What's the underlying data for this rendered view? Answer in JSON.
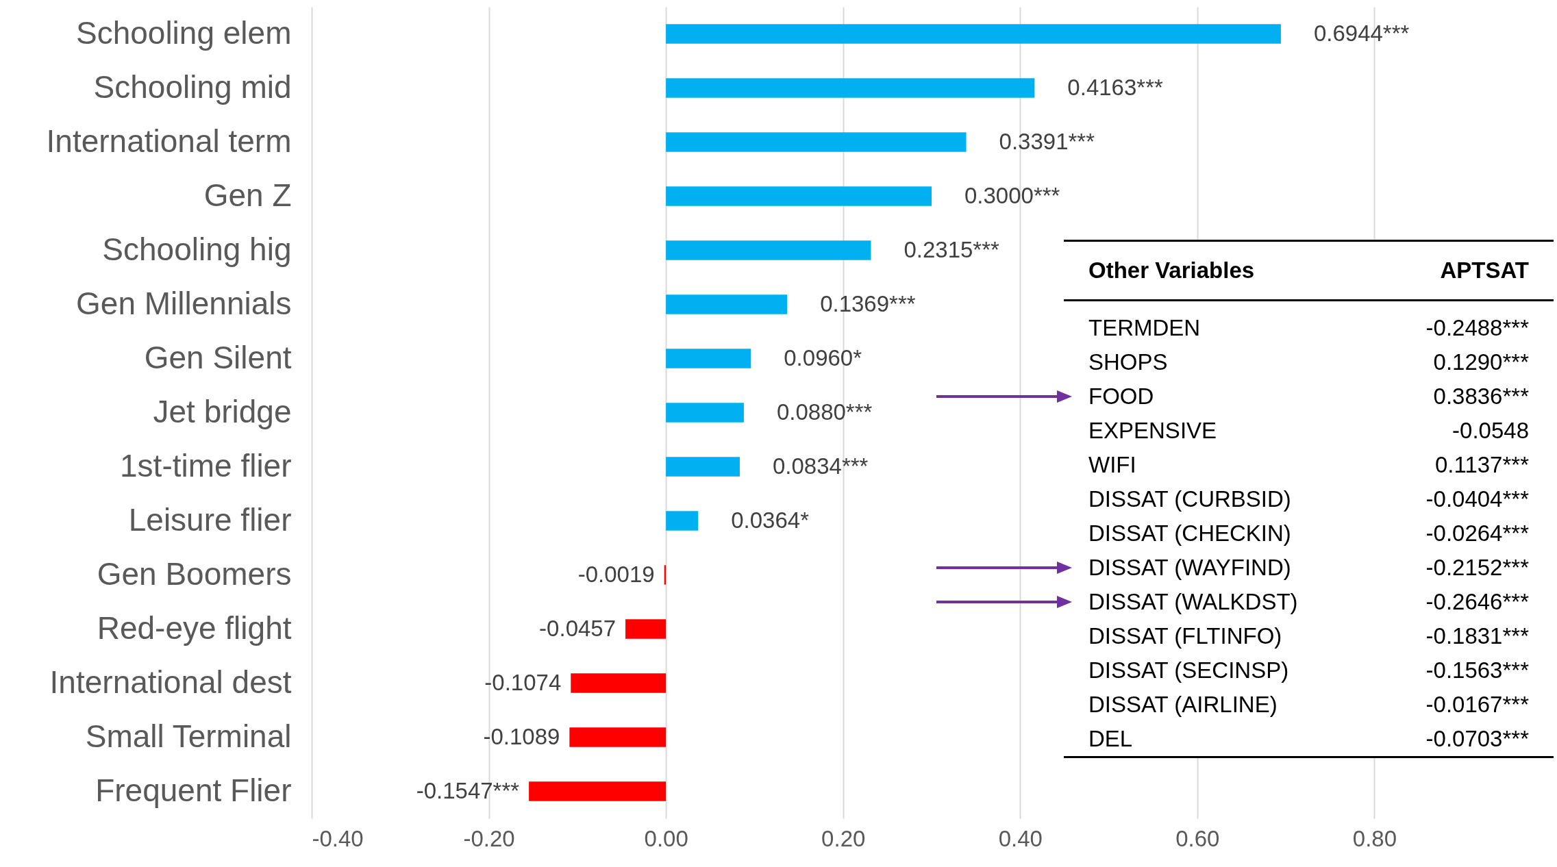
{
  "chart_data": {
    "type": "bar",
    "orientation": "horizontal",
    "categories": [
      "Schooling elem",
      "Schooling mid",
      "International term",
      "Gen Z",
      "Schooling hig",
      "Gen Millennials",
      "Gen Silent",
      "Jet bridge",
      "1st-time flier",
      "Leisure flier",
      "Gen Boomers",
      "Red-eye flight",
      "International dest",
      "Small Terminal",
      "Frequent Flier"
    ],
    "values": [
      0.6944,
      0.4163,
      0.3391,
      0.3,
      0.2315,
      0.1369,
      0.096,
      0.088,
      0.0834,
      0.0364,
      -0.0019,
      -0.0457,
      -0.1074,
      -0.1089,
      -0.1547
    ],
    "colors": [
      "#00b0f0",
      "#00b0f0",
      "#00b0f0",
      "#00b0f0",
      "#00b0f0",
      "#00b0f0",
      "#00b0f0",
      "#00b0f0",
      "#00b0f0",
      "#00b0f0",
      "#ff0000",
      "#ff0000",
      "#ff0000",
      "#ff0000",
      "#ff0000"
    ],
    "value_labels": [
      "0.6944***",
      "0.4163***",
      "0.3391***",
      "0.3000***",
      "0.2315***",
      "0.1369***",
      "0.0960*",
      "0.0880***",
      "0.0834***",
      "0.0364*",
      "-0.0019",
      "-0.0457",
      "-0.1074",
      "-0.1089",
      "-0.1547***"
    ],
    "xlim": [
      -0.4,
      1.0
    ],
    "xticks": [
      {
        "value": -0.4,
        "label": "-0.40"
      },
      {
        "value": -0.2,
        "label": "-0.20"
      },
      {
        "value": 0,
        "label": "0.00"
      },
      {
        "value": 0.2,
        "label": "0.20"
      },
      {
        "value": 0.4,
        "label": "0.40"
      },
      {
        "value": 0.6,
        "label": "0.60"
      },
      {
        "value": 0.8,
        "label": "0.80"
      }
    ],
    "grid": "x",
    "annotations": [
      "Other Variables",
      "APTSAT",
      "TERMDEN",
      "-0.2488***",
      "SHOPS",
      "0.1290***",
      "FOOD",
      "0.3836***",
      "EXPENSIVE",
      "-0.0548",
      "WIFI",
      "0.1137***",
      "DISSAT (CURBSID)",
      "-0.0404***",
      "DISSAT (CHECKIN)",
      "-0.0264***",
      "DISSAT (WAYFIND)",
      "-0.2152***",
      "DISSAT (WALKDST)",
      "-0.2646***",
      "DISSAT (FLTINFO)",
      "-0.1831***",
      "DISSAT (SECINSP)",
      "-0.1563***",
      "DISSAT (AIRLINE)",
      "-0.0167***",
      "DEL",
      "-0.0703***"
    ]
  }
}
